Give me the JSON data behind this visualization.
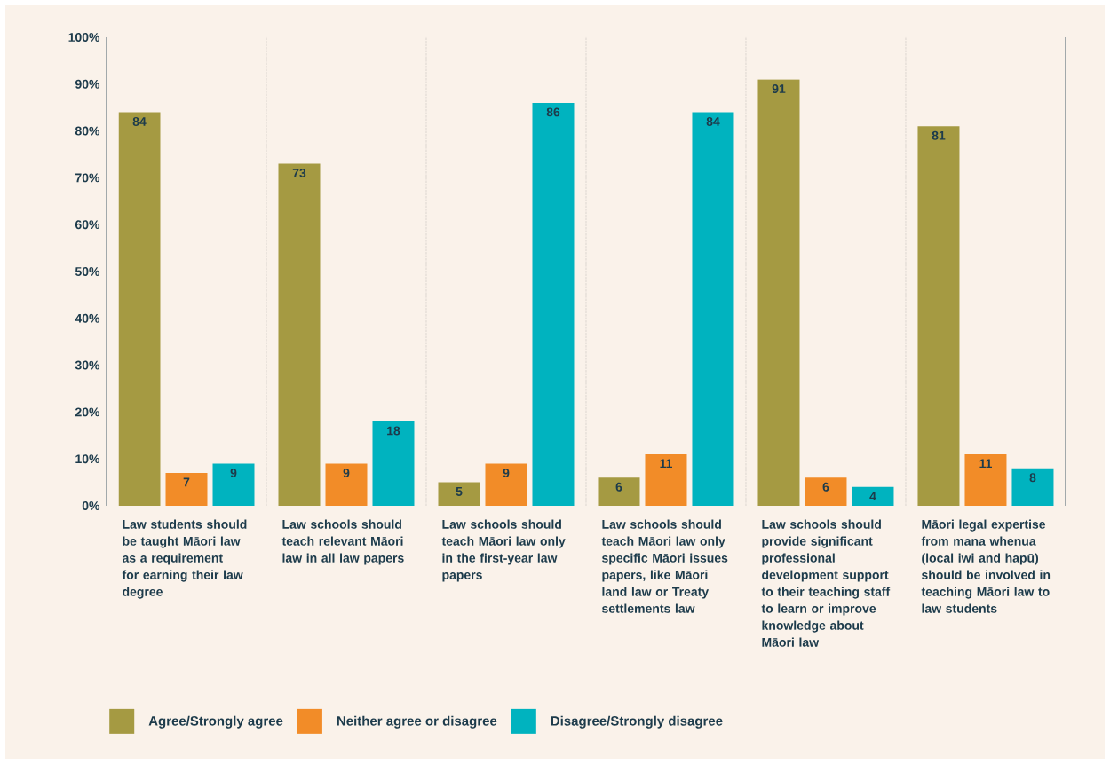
{
  "chart_data": {
    "type": "bar",
    "categories": [
      "Law students should be taught Māori law as a requirement for earning their law degree",
      "Law schools should teach relevant Māori law in all law papers",
      "Law schools should teach Māori law only in the first-year law papers",
      "Law schools should teach Māori law only specific Māori issues papers, like Māori land law or Treaty settlements law",
      "Law schools should provide significant professional development support to their teaching staff to learn or improve knowledge about Māori law",
      "Māori legal expertise from mana whenua (local iwi and hapū) should be involved in teaching Māori law to law students"
    ],
    "series": [
      {
        "name": "Agree/Strongly agree",
        "color": "#a59a42",
        "values": [
          84,
          73,
          5,
          6,
          91,
          81
        ]
      },
      {
        "name": "Neither agree or disagree",
        "color": "#f28c28",
        "values": [
          7,
          9,
          9,
          11,
          6,
          11
        ]
      },
      {
        "name": "Disagree/Strongly disagree",
        "color": "#00b3bf",
        "values": [
          9,
          18,
          86,
          84,
          4,
          8
        ]
      }
    ],
    "ylim": [
      0,
      100
    ],
    "yticks": [
      {
        "value": 0,
        "label": "0%"
      },
      {
        "value": 10,
        "label": "10%"
      },
      {
        "value": 20,
        "label": "20%"
      },
      {
        "value": 30,
        "label": "30%"
      },
      {
        "value": 40,
        "label": "40%"
      },
      {
        "value": 50,
        "label": "50%"
      },
      {
        "value": 60,
        "label": "60%"
      },
      {
        "value": 70,
        "label": "70%"
      },
      {
        "value": 80,
        "label": "80%"
      },
      {
        "value": 90,
        "label": "90%"
      },
      {
        "value": 100,
        "label": "100%"
      }
    ],
    "data_labels": true,
    "legend": "bottom"
  }
}
